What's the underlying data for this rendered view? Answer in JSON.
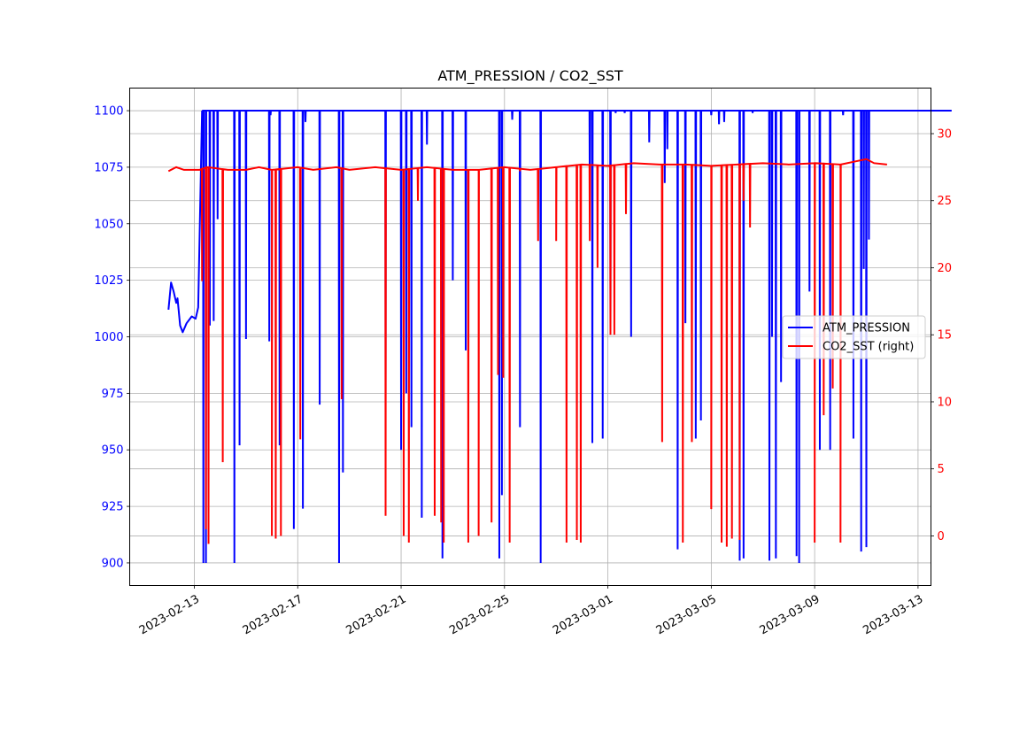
{
  "chart_data": {
    "type": "line",
    "title": "ATM_PRESSION / CO2_SST",
    "xlabel": "",
    "ylabel_left": "",
    "ylabel_right": "",
    "grid": true,
    "legend_position": "center-right",
    "x_start": "2023-02-11",
    "x_range_days": [
      -0.5,
      30.5
    ],
    "x_tick_labels": [
      "2023-02-13",
      "2023-02-17",
      "2023-02-21",
      "2023-02-25",
      "2023-03-01",
      "2023-03-05",
      "2023-03-09",
      "2023-03-13"
    ],
    "x_tick_days": [
      2,
      6,
      10,
      14,
      18,
      22,
      26,
      30
    ],
    "y_left": {
      "range": [
        890,
        1110
      ],
      "ticks": [
        900,
        925,
        950,
        975,
        1000,
        1025,
        1050,
        1075,
        1100
      ],
      "color": "#0000ff"
    },
    "y_right": {
      "range": [
        -3.7,
        33.4
      ],
      "ticks": [
        0,
        5,
        10,
        15,
        20,
        25,
        30
      ],
      "color": "#ff0000"
    },
    "series": [
      {
        "name": "ATM_PRESSION",
        "axis": "left",
        "color": "#0000ff",
        "data_start": 1.0,
        "data_end": 31.3,
        "initial_segment": [
          [
            1.0,
            1012
          ],
          [
            1.1,
            1024
          ],
          [
            1.2,
            1020
          ],
          [
            1.3,
            1015
          ],
          [
            1.35,
            1017
          ],
          [
            1.45,
            1005
          ],
          [
            1.55,
            1002
          ],
          [
            1.7,
            1006
          ],
          [
            1.9,
            1009
          ],
          [
            2.05,
            1008
          ],
          [
            2.15,
            1013
          ],
          [
            2.3,
            1100
          ]
        ],
        "baseline": 1100,
        "dips": [
          [
            2.35,
            900
          ],
          [
            2.45,
            900
          ],
          [
            2.6,
            1005
          ],
          [
            2.75,
            1007
          ],
          [
            2.9,
            1052
          ],
          [
            3.55,
            900
          ],
          [
            3.75,
            952
          ],
          [
            4.0,
            999
          ],
          [
            4.9,
            998
          ],
          [
            4.95,
            1098
          ],
          [
            5.3,
            952
          ],
          [
            5.85,
            915
          ],
          [
            6.2,
            924
          ],
          [
            6.3,
            1095
          ],
          [
            6.85,
            970
          ],
          [
            7.6,
            900
          ],
          [
            7.75,
            940
          ],
          [
            9.4,
            975
          ],
          [
            10.0,
            950
          ],
          [
            10.2,
            975
          ],
          [
            10.4,
            960
          ],
          [
            10.8,
            920
          ],
          [
            11.0,
            1085
          ],
          [
            11.6,
            902
          ],
          [
            12.0,
            1025
          ],
          [
            12.5,
            994
          ],
          [
            13.8,
            902
          ],
          [
            13.9,
            930
          ],
          [
            14.3,
            1096
          ],
          [
            14.6,
            960
          ],
          [
            15.4,
            900
          ],
          [
            17.3,
            1060
          ],
          [
            17.4,
            953
          ],
          [
            17.8,
            955
          ],
          [
            18.1,
            1004
          ],
          [
            18.3,
            1099
          ],
          [
            18.65,
            1099
          ],
          [
            18.9,
            1000
          ],
          [
            19.6,
            1086
          ],
          [
            20.2,
            1068
          ],
          [
            20.3,
            1083
          ],
          [
            20.7,
            906
          ],
          [
            21.0,
            1006
          ],
          [
            21.4,
            955
          ],
          [
            21.6,
            963
          ],
          [
            22.0,
            1098
          ],
          [
            22.3,
            1094
          ],
          [
            22.5,
            1095
          ],
          [
            23.1,
            901
          ],
          [
            23.25,
            902
          ],
          [
            23.6,
            1099
          ],
          [
            24.25,
            901
          ],
          [
            24.35,
            1000
          ],
          [
            24.5,
            902
          ],
          [
            24.7,
            980
          ],
          [
            25.3,
            903
          ],
          [
            25.4,
            900
          ],
          [
            25.8,
            1020
          ],
          [
            26.2,
            950
          ],
          [
            26.6,
            950
          ],
          [
            27.1,
            1098
          ],
          [
            27.5,
            955
          ],
          [
            27.8,
            905
          ],
          [
            27.9,
            1030
          ],
          [
            28.0,
            907
          ],
          [
            28.1,
            1043
          ]
        ]
      },
      {
        "name": "CO2_SST",
        "axis": "right",
        "color": "#ff0000",
        "baseline": 27.3,
        "baseline_points": [
          [
            1.0,
            27.2
          ],
          [
            1.3,
            27.5
          ],
          [
            1.6,
            27.3
          ],
          [
            2.2,
            27.3
          ],
          [
            2.5,
            27.5
          ],
          [
            3.3,
            27.3
          ],
          [
            4.0,
            27.3
          ],
          [
            4.5,
            27.5
          ],
          [
            5.0,
            27.3
          ],
          [
            6.0,
            27.5
          ],
          [
            6.6,
            27.3
          ],
          [
            7.5,
            27.5
          ],
          [
            8.0,
            27.3
          ],
          [
            9.0,
            27.5
          ],
          [
            10.0,
            27.3
          ],
          [
            11.0,
            27.5
          ],
          [
            12.0,
            27.3
          ],
          [
            13.0,
            27.3
          ],
          [
            14.0,
            27.5
          ],
          [
            15.0,
            27.3
          ],
          [
            16.0,
            27.5
          ],
          [
            17.0,
            27.7
          ],
          [
            18.0,
            27.6
          ],
          [
            19.0,
            27.8
          ],
          [
            20.0,
            27.7
          ],
          [
            21.0,
            27.7
          ],
          [
            22.0,
            27.6
          ],
          [
            23.0,
            27.7
          ],
          [
            24.0,
            27.8
          ],
          [
            25.0,
            27.7
          ],
          [
            26.0,
            27.8
          ],
          [
            27.0,
            27.7
          ],
          [
            27.5,
            27.9
          ],
          [
            28.0,
            28.1
          ],
          [
            28.3,
            27.8
          ],
          [
            28.8,
            27.7
          ]
        ],
        "dips": [
          [
            2.3,
            19
          ],
          [
            2.45,
            0.5
          ],
          [
            2.55,
            -0.6
          ],
          [
            3.1,
            5.5
          ],
          [
            5.0,
            0
          ],
          [
            5.15,
            -0.2
          ],
          [
            5.35,
            0
          ],
          [
            6.1,
            7.2
          ],
          [
            7.7,
            10.2
          ],
          [
            9.4,
            1.5
          ],
          [
            10.1,
            0
          ],
          [
            10.3,
            -0.5
          ],
          [
            10.65,
            25
          ],
          [
            11.3,
            1.5
          ],
          [
            11.55,
            1.0
          ],
          [
            11.65,
            -0.5
          ],
          [
            12.6,
            -0.5
          ],
          [
            13.0,
            0
          ],
          [
            13.5,
            1.0
          ],
          [
            13.75,
            12
          ],
          [
            13.95,
            11.8
          ],
          [
            14.2,
            -0.5
          ],
          [
            14.6,
            27.2
          ],
          [
            15.3,
            22
          ],
          [
            16.0,
            22
          ],
          [
            16.4,
            -0.5
          ],
          [
            16.8,
            -0.3
          ],
          [
            16.95,
            -0.5
          ],
          [
            17.3,
            22
          ],
          [
            17.6,
            20
          ],
          [
            18.1,
            15
          ],
          [
            18.25,
            15
          ],
          [
            18.7,
            24
          ],
          [
            20.1,
            7
          ],
          [
            20.9,
            -0.5
          ],
          [
            21.25,
            7
          ],
          [
            22.0,
            2.0
          ],
          [
            22.4,
            -0.5
          ],
          [
            22.6,
            -0.8
          ],
          [
            22.8,
            -0.2
          ],
          [
            23.1,
            -0.3
          ],
          [
            23.25,
            25
          ],
          [
            23.5,
            23
          ],
          [
            26.0,
            -0.5
          ],
          [
            26.35,
            9.0
          ],
          [
            26.7,
            11
          ],
          [
            27.0,
            -0.5
          ]
        ]
      }
    ]
  }
}
